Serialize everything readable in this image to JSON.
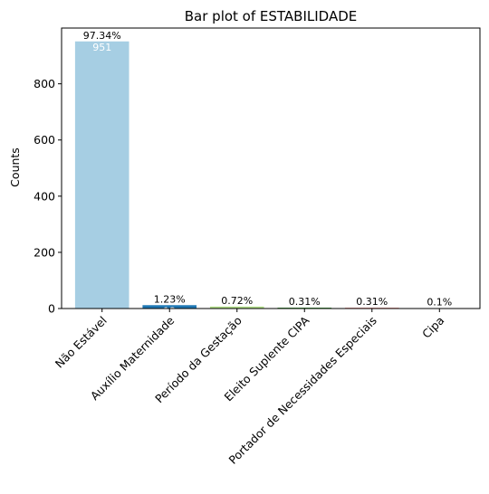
{
  "chart_data": {
    "type": "bar",
    "title": "Bar plot of ESTABILIDADE",
    "xlabel": "",
    "ylabel": "Counts",
    "categories": [
      "Não Estável",
      "Auxílio Maternidade",
      "Período da Gestação",
      "Eleito Suplente CIPA",
      "Portador de Necessidades Especiais",
      "Cipa"
    ],
    "values": [
      951,
      12,
      7,
      3,
      3,
      1
    ],
    "percent_labels": [
      "97.34%",
      "1.23%",
      "0.72%",
      "0.31%",
      "0.31%",
      "0.1%"
    ],
    "count_labels": [
      "951",
      "12",
      "7",
      "3",
      "3",
      "1"
    ],
    "colors": [
      "#a6cee3",
      "#1f78b4",
      "#b2df8a",
      "#33a02c",
      "#fb9a99",
      "#e31a1c"
    ],
    "ylim": [
      0,
      998.55
    ],
    "yticks": [
      0,
      200,
      400,
      600,
      800
    ],
    "grid": false,
    "legend": "none"
  }
}
